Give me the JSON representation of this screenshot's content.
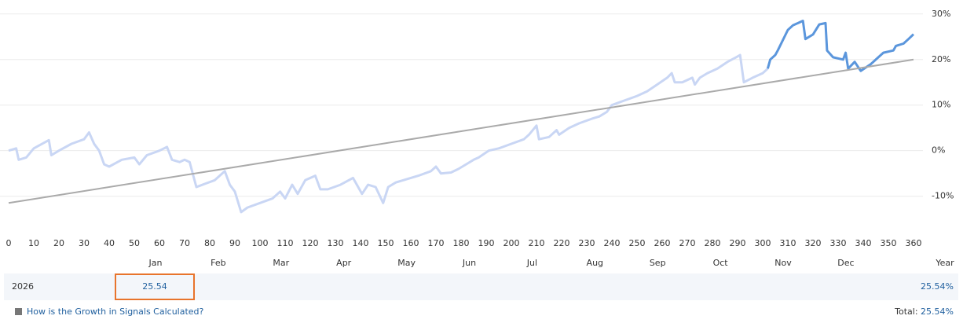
{
  "chart_data": {
    "type": "line",
    "xlim": [
      0,
      360
    ],
    "xticks": [
      0,
      10,
      20,
      30,
      40,
      50,
      60,
      70,
      80,
      90,
      100,
      110,
      120,
      130,
      140,
      150,
      160,
      170,
      180,
      190,
      200,
      210,
      220,
      230,
      240,
      250,
      260,
      270,
      280,
      290,
      300,
      310,
      320,
      330,
      340,
      350,
      360
    ],
    "ylim": [
      -18,
      31
    ],
    "yticks": [
      {
        "value": -10,
        "label": "-10%"
      },
      {
        "value": 0,
        "label": "0%"
      },
      {
        "value": 10,
        "label": "10%"
      },
      {
        "value": 20,
        "label": "20%"
      },
      {
        "value": 30,
        "label": "30%"
      }
    ],
    "grid": true,
    "months": [
      "Jan",
      "Feb",
      "Mar",
      "Apr",
      "May",
      "Jun",
      "Jul",
      "Aug",
      "Sep",
      "Oct",
      "Nov",
      "Dec"
    ],
    "year_label": "Year",
    "series": [
      {
        "color": "#c9d6f4",
        "width": 3,
        "x": [
          0,
          3,
          4,
          7,
          10,
          16,
          17,
          20,
          25,
          30,
          32,
          34,
          36,
          38,
          40,
          45,
          50,
          52,
          55,
          60,
          63,
          65,
          68,
          70,
          72,
          74.7,
          78,
          82,
          86,
          88,
          90,
          92.5,
          95,
          100,
          105,
          108,
          110,
          112.8,
          115,
          118,
          122,
          124,
          127,
          132,
          137,
          140.6,
          143,
          146,
          149,
          151,
          154,
          160,
          163,
          168,
          170,
          172,
          176,
          179,
          182,
          185,
          187,
          191,
          195,
          200,
          205,
          207,
          210,
          211,
          215,
          218,
          219,
          223,
          227,
          232,
          235,
          238,
          240,
          245,
          250,
          254,
          258,
          262,
          263.8,
          265,
          268,
          272,
          273,
          275,
          278,
          282,
          286,
          289.4,
          291,
          292.5,
          296,
          300,
          302
        ],
        "values": [
          0,
          0.5,
          -2,
          -1.5,
          0.5,
          2.3,
          -1,
          0,
          1.5,
          2.5,
          4,
          1.5,
          0,
          -3,
          -3.5,
          -2,
          -1.5,
          -3,
          -1,
          0,
          0.8,
          -2,
          -2.5,
          -2,
          -2.5,
          -8,
          -7.3,
          -6.5,
          -4.5,
          -7.5,
          -9,
          -13.5,
          -12.5,
          -11.5,
          -10.5,
          -9,
          -10.5,
          -7.5,
          -9.5,
          -6.5,
          -5.5,
          -8.5,
          -8.5,
          -7.5,
          -6,
          -9.5,
          -7.5,
          -8,
          -11.5,
          -8,
          -7,
          -6,
          -5.5,
          -4.5,
          -3.5,
          -5,
          -4.8,
          -4,
          -3,
          -2,
          -1.5,
          0,
          0.5,
          1.5,
          2.5,
          3.5,
          5.5,
          2.5,
          3,
          4.5,
          3.5,
          5,
          6,
          7,
          7.5,
          8.5,
          10,
          11,
          12,
          13,
          14.5,
          16,
          17,
          15,
          15,
          16,
          14.5,
          16,
          17,
          18,
          19.5,
          20.5,
          21,
          15,
          16,
          17,
          18
        ]
      },
      {
        "color": "#5b96dc",
        "width": 3,
        "x": [
          302,
          303,
          305,
          306,
          310,
          312,
          316,
          317,
          320,
          322.5,
          325,
          325.6,
          328,
          332,
          333,
          334,
          336.6,
          339,
          343,
          346,
          348,
          352,
          353,
          356,
          358,
          360
        ],
        "values": [
          18,
          20,
          21,
          22,
          26.5,
          27.5,
          28.5,
          24.5,
          25.5,
          27.7,
          28,
          22,
          20.5,
          20,
          21.5,
          18,
          19.5,
          17.5,
          19,
          20.5,
          21.5,
          22,
          23,
          23.5,
          24.5,
          25.54
        ]
      },
      {
        "color": "#aaaaaa",
        "width": 2,
        "x": [
          0,
          360
        ],
        "values": [
          -11.5,
          20
        ]
      }
    ]
  },
  "table": {
    "rows": [
      [
        "2026",
        "25.54",
        "25.54%"
      ]
    ]
  },
  "footer": {
    "link": "How is the Growth in Signals Calculated?",
    "total_label": "Total:",
    "total": "25.54%"
  }
}
